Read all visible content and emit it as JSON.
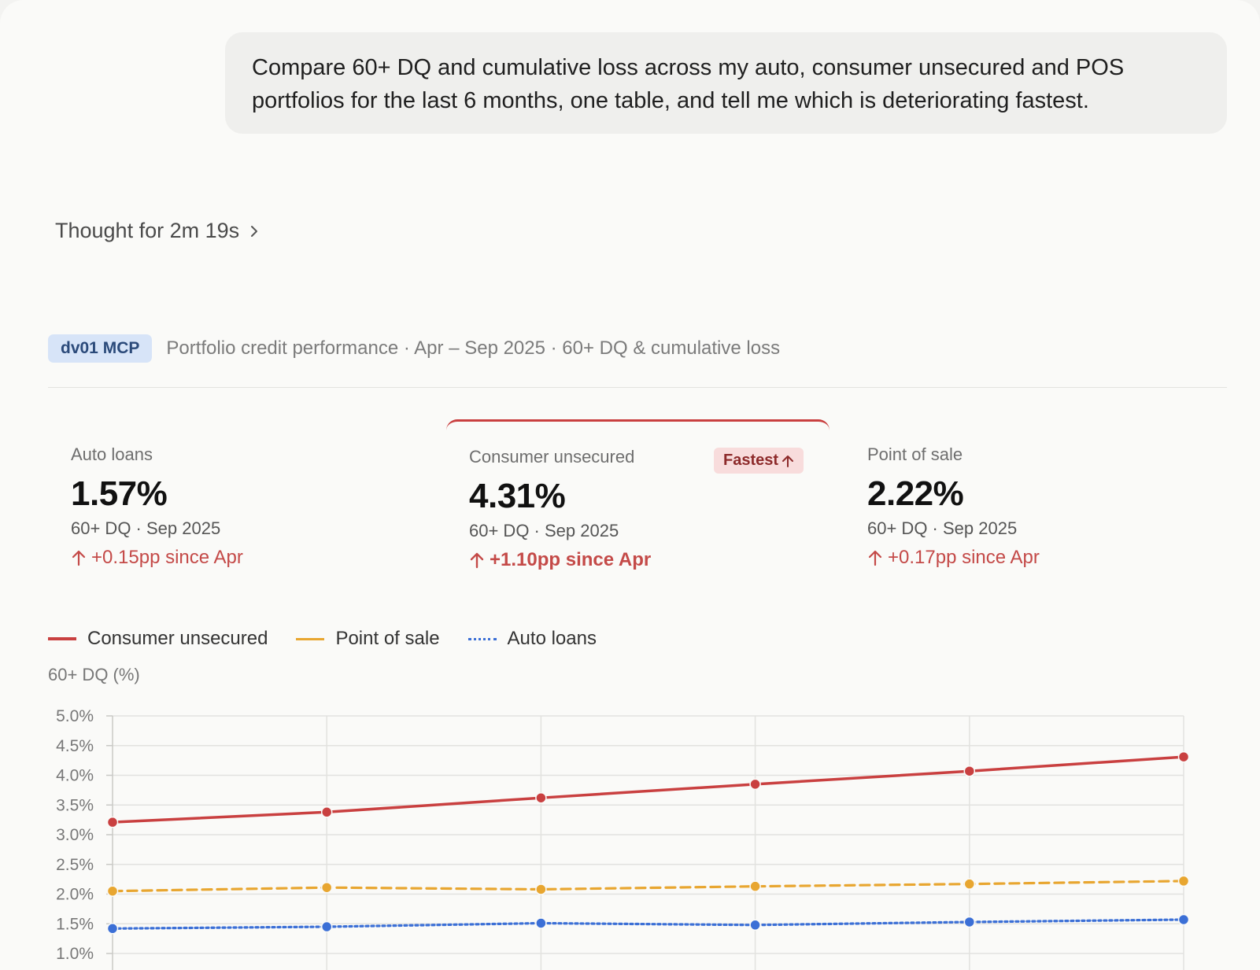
{
  "user_message": "Compare 60+ DQ and cumulative loss across my auto, consumer unsecured and POS portfolios for the last 6 months, one table, and tell me which is deteriorating fastest.",
  "thought": {
    "label": "Thought for 2m 19s",
    "icon": "chevron-right-icon"
  },
  "header": {
    "tag": "dv01 MCP",
    "description": "Portfolio credit performance · Apr – Sep 2025 · 60+ DQ & cumulative loss"
  },
  "kpis": [
    {
      "label": "Auto loans",
      "value": "1.57%",
      "sub": "60+ DQ · Sep 2025",
      "delta": "+0.15pp since Apr"
    },
    {
      "label": "Consumer unsecured",
      "value": "4.31%",
      "sub": "60+ DQ · Sep 2025",
      "delta": "+1.10pp since Apr",
      "badge": "Fastest"
    },
    {
      "label": "Point of sale",
      "value": "2.22%",
      "sub": "60+ DQ · Sep 2025",
      "delta": "+0.17pp since Apr"
    }
  ],
  "colors": {
    "accent_red": "#c94040",
    "pos_orange": "#e8a630",
    "auto_blue": "#3b6fd6"
  },
  "chart_data": {
    "type": "line",
    "ylabel": "60+ DQ (%)",
    "y_ticks": [
      "5.0%",
      "4.5%",
      "4.0%",
      "3.5%",
      "3.0%",
      "2.5%",
      "2.0%",
      "1.5%",
      "1.0%"
    ],
    "ylim": [
      1.0,
      5.0
    ],
    "grid": true,
    "legend_position": "top-left",
    "series": [
      {
        "name": "Consumer unsecured",
        "style": "solid",
        "color": "#c94040",
        "values": [
          3.21,
          3.38,
          3.62,
          3.85,
          4.07,
          4.31
        ]
      },
      {
        "name": "Point of sale",
        "style": "dashed",
        "color": "#e8a630",
        "values": [
          2.05,
          2.11,
          2.08,
          2.13,
          2.17,
          2.22
        ]
      },
      {
        "name": "Auto loans",
        "style": "dotted",
        "color": "#3b6fd6",
        "values": [
          1.42,
          1.45,
          1.51,
          1.48,
          1.53,
          1.57
        ]
      }
    ]
  }
}
